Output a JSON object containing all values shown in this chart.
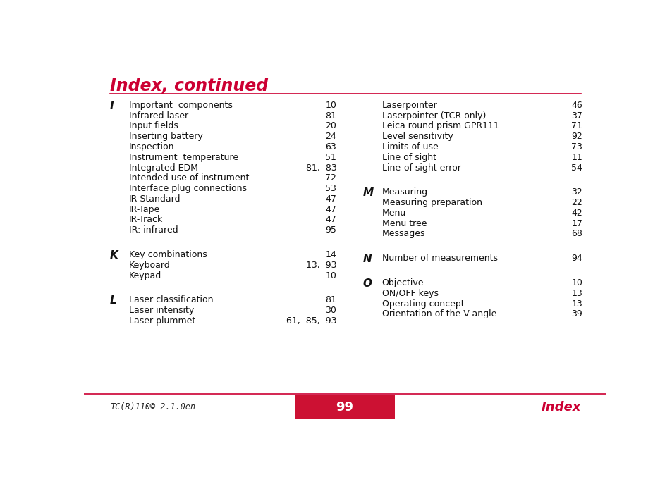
{
  "title": "Index, continued",
  "title_color": "#cc0033",
  "bg_color": "#ffffff",
  "footer_left": "TC(R)110©-2.1.0en",
  "footer_center": "99",
  "footer_right": "Index",
  "footer_center_bg": "#cc1133",
  "footer_line_color": "#cc0033",
  "left_column": [
    {
      "letter": "I",
      "entries": [
        [
          "Important  components",
          "10"
        ],
        [
          "Infrared laser",
          "81"
        ],
        [
          "Input fields",
          "20"
        ],
        [
          "Inserting battery",
          "24"
        ],
        [
          "Inspection",
          "63"
        ],
        [
          "Instrument  temperature",
          "51"
        ],
        [
          "Integrated EDM",
          "81,  83"
        ],
        [
          "Intended use of instrument",
          "72"
        ],
        [
          "Interface plug connections",
          "53"
        ],
        [
          "IR-Standard",
          "47"
        ],
        [
          "IR-Tape",
          "47"
        ],
        [
          "IR-Track",
          "47"
        ],
        [
          "IR: infrared",
          "95"
        ]
      ]
    },
    {
      "letter": "K",
      "entries": [
        [
          "Key combinations",
          "14"
        ],
        [
          "Keyboard",
          "13,  93"
        ],
        [
          "Keypad",
          "10"
        ]
      ]
    },
    {
      "letter": "L",
      "entries": [
        [
          "Laser classification",
          "81"
        ],
        [
          "Laser intensity",
          "30"
        ],
        [
          "Laser plummet",
          "61,  85,  93"
        ]
      ]
    }
  ],
  "right_column": [
    {
      "letter": "",
      "entries": [
        [
          "Laserpointer",
          "46"
        ],
        [
          "Laserpointer (TCR only)",
          "37"
        ],
        [
          "Leica round prism GPR111",
          "71"
        ],
        [
          "Level sensitivity",
          "92"
        ],
        [
          "Limits of use",
          "73"
        ],
        [
          "Line of sight",
          "11"
        ],
        [
          "Line-of-sight error",
          "54"
        ]
      ]
    },
    {
      "letter": "M",
      "entries": [
        [
          "Measuring",
          "32"
        ],
        [
          "Measuring preparation",
          "22"
        ],
        [
          "Menu",
          "42"
        ],
        [
          "Menu tree",
          "17"
        ],
        [
          "Messages",
          "68"
        ]
      ]
    },
    {
      "letter": "N",
      "entries": [
        [
          "Number of measurements",
          "94"
        ]
      ]
    },
    {
      "letter": "O",
      "entries": [
        [
          "Objective",
          "10"
        ],
        [
          "ON/OFF keys",
          "13"
        ],
        [
          "Operating concept",
          "13"
        ],
        [
          "Orientation of the V-angle",
          "39"
        ]
      ]
    }
  ]
}
